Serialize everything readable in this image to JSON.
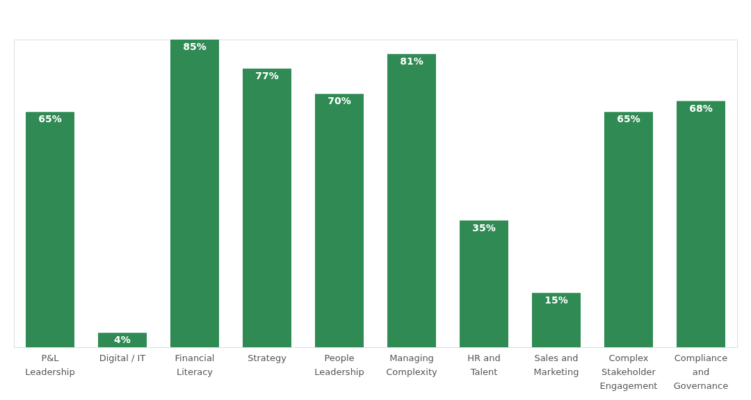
{
  "chart_data": {
    "type": "bar",
    "categories": [
      "P&L\nLeadership",
      "Digital / IT",
      "Financial\nLiteracy",
      "Strategy",
      "People\nLeadership",
      "Managing\nComplexity",
      "HR and\nTalent",
      "Sales and\nMarketing",
      "Complex\nStakeholder\nEngagement",
      "Compliance\nand\nGovernance"
    ],
    "values": [
      65,
      4,
      85,
      77,
      70,
      81,
      35,
      15,
      65,
      68
    ],
    "value_labels": [
      "65%",
      "4%",
      "85%",
      "77%",
      "70%",
      "81%",
      "35%",
      "15%",
      "65%",
      "68%"
    ],
    "color": "#2f8a53",
    "grid": false
  }
}
